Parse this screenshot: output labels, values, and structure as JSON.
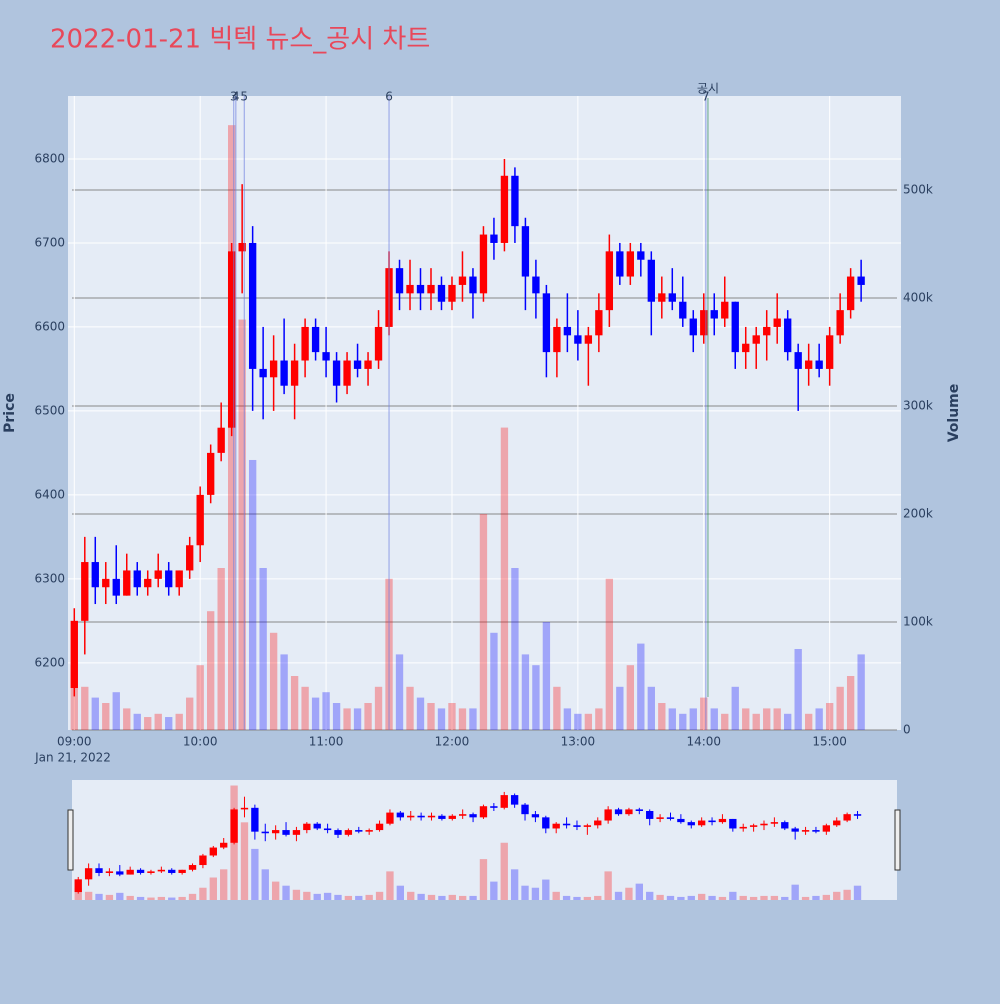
{
  "chart_data": {
    "type": "candlestick",
    "title": "2022-01-21 빅텍 뉴스_공시 차트",
    "y_label": "Price",
    "y2_label": "Volume",
    "x_subtitle": "Jan 21, 2022",
    "increasing_color": "#ff0000",
    "decreasing_color": "#0000ff",
    "xlim": [
      -3,
      394
    ],
    "xticks": [
      {
        "value": 0,
        "label": "09:00"
      },
      {
        "value": 60,
        "label": "10:00"
      },
      {
        "value": 120,
        "label": "11:00"
      },
      {
        "value": 180,
        "label": "12:00"
      },
      {
        "value": 240,
        "label": "13:00"
      },
      {
        "value": 300,
        "label": "14:00"
      },
      {
        "value": 360,
        "label": "15:00"
      }
    ],
    "ylim": [
      6120,
      6875
    ],
    "yticks": [
      6200,
      6300,
      6400,
      6500,
      6600,
      6700,
      6800
    ],
    "y2lim": [
      0,
      587000
    ],
    "y2ticks": [
      {
        "value": 0,
        "label": "0"
      },
      {
        "value": 100000,
        "label": "100k"
      },
      {
        "value": 200000,
        "label": "200k"
      },
      {
        "value": 300000,
        "label": "300k"
      },
      {
        "value": 400000,
        "label": "400k"
      },
      {
        "value": 500000,
        "label": "500k"
      }
    ],
    "grid": true,
    "range_slider": true,
    "annotations": [
      {
        "text": "3",
        "x": 76
      },
      {
        "text": "4",
        "x": 77
      },
      {
        "text": "5",
        "x": 81
      },
      {
        "text": "6",
        "x": 150
      },
      {
        "text": "7",
        "x": 301
      },
      {
        "text": "공시",
        "x": 302
      }
    ],
    "x": [
      0,
      5,
      10,
      15,
      20,
      25,
      30,
      35,
      40,
      45,
      50,
      55,
      60,
      65,
      70,
      75,
      80,
      85,
      90,
      95,
      100,
      105,
      110,
      115,
      120,
      125,
      130,
      135,
      140,
      145,
      150,
      155,
      160,
      165,
      170,
      175,
      180,
      185,
      190,
      195,
      200,
      205,
      210,
      215,
      220,
      225,
      230,
      235,
      240,
      245,
      250,
      255,
      260,
      265,
      270,
      275,
      280,
      285,
      290,
      295,
      300,
      305,
      310,
      315,
      320,
      325,
      330,
      335,
      340,
      345,
      350,
      355,
      360,
      365,
      370,
      375
    ],
    "open": [
      6170,
      6250,
      6320,
      6290,
      6300,
      6280,
      6310,
      6290,
      6300,
      6310,
      6290,
      6310,
      6340,
      6400,
      6450,
      6480,
      6690,
      6700,
      6550,
      6540,
      6560,
      6530,
      6560,
      6600,
      6570,
      6560,
      6530,
      6560,
      6550,
      6560,
      6600,
      6670,
      6640,
      6650,
      6640,
      6650,
      6630,
      6650,
      6660,
      6640,
      6710,
      6700,
      6780,
      6720,
      6660,
      6640,
      6570,
      6600,
      6590,
      6580,
      6590,
      6620,
      6690,
      6660,
      6690,
      6680,
      6630,
      6640,
      6630,
      6610,
      6590,
      6620,
      6610,
      6630,
      6570,
      6580,
      6590,
      6600,
      6610,
      6570,
      6550,
      6560,
      6550,
      6590,
      6620,
      6660
    ],
    "high": [
      6265,
      6350,
      6350,
      6320,
      6340,
      6330,
      6320,
      6310,
      6330,
      6320,
      6310,
      6350,
      6410,
      6460,
      6510,
      6700,
      6770,
      6720,
      6600,
      6590,
      6610,
      6580,
      6610,
      6610,
      6600,
      6570,
      6570,
      6580,
      6570,
      6620,
      6690,
      6680,
      6680,
      6670,
      6670,
      6660,
      6660,
      6690,
      6670,
      6720,
      6730,
      6800,
      6790,
      6730,
      6680,
      6650,
      6610,
      6640,
      6620,
      6600,
      6640,
      6710,
      6700,
      6700,
      6700,
      6690,
      6660,
      6670,
      6660,
      6620,
      6640,
      6640,
      6660,
      6630,
      6600,
      6600,
      6620,
      6640,
      6620,
      6580,
      6580,
      6580,
      6600,
      6640,
      6670,
      6680
    ],
    "low": [
      6160,
      6210,
      6270,
      6270,
      6270,
      6280,
      6280,
      6280,
      6290,
      6280,
      6280,
      6300,
      6320,
      6390,
      6440,
      6470,
      6640,
      6500,
      6490,
      6500,
      6520,
      6490,
      6540,
      6560,
      6540,
      6510,
      6520,
      6540,
      6530,
      6550,
      6590,
      6620,
      6620,
      6620,
      6620,
      6620,
      6620,
      6630,
      6610,
      6630,
      6680,
      6690,
      6700,
      6620,
      6610,
      6540,
      6540,
      6570,
      6560,
      6530,
      6570,
      6600,
      6650,
      6650,
      6660,
      6590,
      6610,
      6620,
      6600,
      6570,
      6580,
      6590,
      6600,
      6550,
      6550,
      6550,
      6560,
      6580,
      6560,
      6500,
      6530,
      6540,
      6530,
      6580,
      6610,
      6630
    ],
    "close": [
      6250,
      6320,
      6290,
      6300,
      6280,
      6310,
      6290,
      6300,
      6310,
      6290,
      6310,
      6340,
      6400,
      6450,
      6480,
      6690,
      6700,
      6550,
      6540,
      6560,
      6530,
      6560,
      6600,
      6570,
      6560,
      6530,
      6560,
      6550,
      6560,
      6600,
      6670,
      6640,
      6650,
      6640,
      6650,
      6630,
      6650,
      6660,
      6640,
      6710,
      6700,
      6780,
      6720,
      6660,
      6640,
      6570,
      6600,
      6590,
      6580,
      6590,
      6620,
      6690,
      6660,
      6690,
      6680,
      6630,
      6640,
      6630,
      6610,
      6590,
      6620,
      6610,
      6630,
      6570,
      6580,
      6590,
      6600,
      6610,
      6570,
      6550,
      6560,
      6550,
      6590,
      6620,
      6660,
      6650
    ],
    "volume": [
      60000,
      40000,
      30000,
      25000,
      35000,
      20000,
      15000,
      12000,
      15000,
      12000,
      15000,
      30000,
      60000,
      110000,
      150000,
      560000,
      380000,
      250000,
      150000,
      90000,
      70000,
      50000,
      40000,
      30000,
      35000,
      25000,
      20000,
      20000,
      25000,
      40000,
      140000,
      70000,
      40000,
      30000,
      25000,
      20000,
      25000,
      20000,
      20000,
      200000,
      90000,
      280000,
      150000,
      70000,
      60000,
      100000,
      40000,
      20000,
      15000,
      15000,
      20000,
      140000,
      40000,
      60000,
      80000,
      40000,
      25000,
      20000,
      15000,
      20000,
      30000,
      20000,
      15000,
      40000,
      20000,
      15000,
      20000,
      20000,
      15000,
      75000,
      15000,
      20000,
      25000,
      40000,
      50000,
      70000
    ]
  }
}
